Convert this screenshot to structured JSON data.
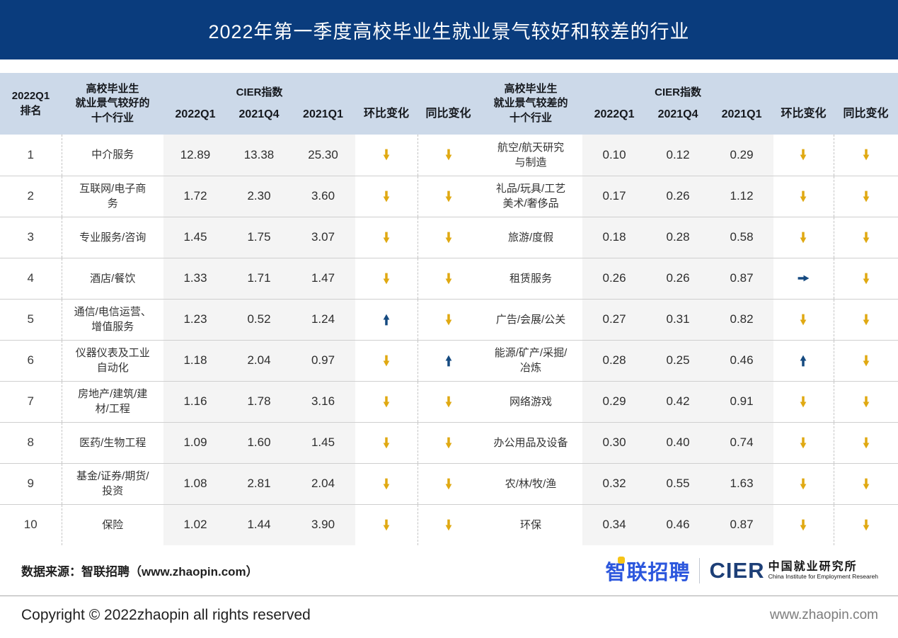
{
  "title": "2022年第一季度高校毕业生就业景气较好和较差的行业",
  "colors": {
    "yellow": "#e0a912",
    "blue": "#154a80",
    "banner": "#0a3c7d",
    "header_bg": "#ccd9e9",
    "logo_blue": "#2c57dd",
    "cier_navy": "#1d3f77"
  },
  "table": {
    "rank_header": "2022Q1\n排名",
    "good_header": "高校毕业生\n就业景气较好的\n十个行业",
    "bad_header": "高校毕业生\n就业景气较差的\n十个行业",
    "cier_group_header": "CIER指数",
    "mom_header": "环比变化",
    "yoy_header": "同比变化",
    "year_cols": [
      "2022Q1",
      "2021Q4",
      "2021Q1"
    ],
    "rows": [
      {
        "rank": "1",
        "good": "中介服务",
        "g_2022q1": "12.89",
        "g_2021q4": "13.38",
        "g_2021q1": "25.30",
        "g_mom": "down-yellow",
        "g_yoy": "down-yellow",
        "bad": "航空/航天研究\n与制造",
        "b_2022q1": "0.10",
        "b_2021q4": "0.12",
        "b_2021q1": "0.29",
        "b_mom": "down-yellow",
        "b_yoy": "down-yellow"
      },
      {
        "rank": "2",
        "good": "互联网/电子商\n务",
        "g_2022q1": "1.72",
        "g_2021q4": "2.30",
        "g_2021q1": "3.60",
        "g_mom": "down-yellow",
        "g_yoy": "down-yellow",
        "bad": "礼品/玩具/工艺\n美术/奢侈品",
        "b_2022q1": "0.17",
        "b_2021q4": "0.26",
        "b_2021q1": "1.12",
        "b_mom": "down-yellow",
        "b_yoy": "down-yellow"
      },
      {
        "rank": "3",
        "good": "专业服务/咨询",
        "g_2022q1": "1.45",
        "g_2021q4": "1.75",
        "g_2021q1": "3.07",
        "g_mom": "down-yellow",
        "g_yoy": "down-yellow",
        "bad": "旅游/度假",
        "b_2022q1": "0.18",
        "b_2021q4": "0.28",
        "b_2021q1": "0.58",
        "b_mom": "down-yellow",
        "b_yoy": "down-yellow"
      },
      {
        "rank": "4",
        "good": "酒店/餐饮",
        "g_2022q1": "1.33",
        "g_2021q4": "1.71",
        "g_2021q1": "1.47",
        "g_mom": "down-yellow",
        "g_yoy": "down-yellow",
        "bad": "租赁服务",
        "b_2022q1": "0.26",
        "b_2021q4": "0.26",
        "b_2021q1": "0.87",
        "b_mom": "right-blue",
        "b_yoy": "down-yellow"
      },
      {
        "rank": "5",
        "good": "通信/电信运营、\n增值服务",
        "g_2022q1": "1.23",
        "g_2021q4": "0.52",
        "g_2021q1": "1.24",
        "g_mom": "up-blue",
        "g_yoy": "down-yellow",
        "bad": "广告/会展/公关",
        "b_2022q1": "0.27",
        "b_2021q4": "0.31",
        "b_2021q1": "0.82",
        "b_mom": "down-yellow",
        "b_yoy": "down-yellow"
      },
      {
        "rank": "6",
        "good": "仪器仪表及工业\n自动化",
        "g_2022q1": "1.18",
        "g_2021q4": "2.04",
        "g_2021q1": "0.97",
        "g_mom": "down-yellow",
        "g_yoy": "up-blue",
        "bad": "能源/矿产/采掘/\n冶炼",
        "b_2022q1": "0.28",
        "b_2021q4": "0.25",
        "b_2021q1": "0.46",
        "b_mom": "up-blue",
        "b_yoy": "down-yellow"
      },
      {
        "rank": "7",
        "good": "房地产/建筑/建\n材/工程",
        "g_2022q1": "1.16",
        "g_2021q4": "1.78",
        "g_2021q1": "3.16",
        "g_mom": "down-yellow",
        "g_yoy": "down-yellow",
        "bad": "网络游戏",
        "b_2022q1": "0.29",
        "b_2021q4": "0.42",
        "b_2021q1": "0.91",
        "b_mom": "down-yellow",
        "b_yoy": "down-yellow"
      },
      {
        "rank": "8",
        "good": "医药/生物工程",
        "g_2022q1": "1.09",
        "g_2021q4": "1.60",
        "g_2021q1": "1.45",
        "g_mom": "down-yellow",
        "g_yoy": "down-yellow",
        "bad": "办公用品及设备",
        "b_2022q1": "0.30",
        "b_2021q4": "0.40",
        "b_2021q1": "0.74",
        "b_mom": "down-yellow",
        "b_yoy": "down-yellow"
      },
      {
        "rank": "9",
        "good": "基金/证券/期货/\n投资",
        "g_2022q1": "1.08",
        "g_2021q4": "2.81",
        "g_2021q1": "2.04",
        "g_mom": "down-yellow",
        "g_yoy": "down-yellow",
        "bad": "农/林/牧/渔",
        "b_2022q1": "0.32",
        "b_2021q4": "0.55",
        "b_2021q1": "1.63",
        "b_mom": "down-yellow",
        "b_yoy": "down-yellow"
      },
      {
        "rank": "10",
        "good": "保险",
        "g_2022q1": "1.02",
        "g_2021q4": "1.44",
        "g_2021q1": "3.90",
        "g_mom": "down-yellow",
        "g_yoy": "down-yellow",
        "bad": "环保",
        "b_2022q1": "0.34",
        "b_2021q4": "0.46",
        "b_2021q1": "0.87",
        "b_mom": "down-yellow",
        "b_yoy": "down-yellow"
      }
    ]
  },
  "footer": {
    "source": "数据来源：智联招聘（www.zhaopin.com）",
    "copyright": "Copyright ©  2022zhaopin all rights reserved",
    "site": "www.zhaopin.com",
    "logo_zhaopin": "智联招聘",
    "logo_cier": "CIER",
    "logo_cier_cn": "中国就业研究所",
    "logo_cier_en": "China Institute for Employment Researeh"
  }
}
